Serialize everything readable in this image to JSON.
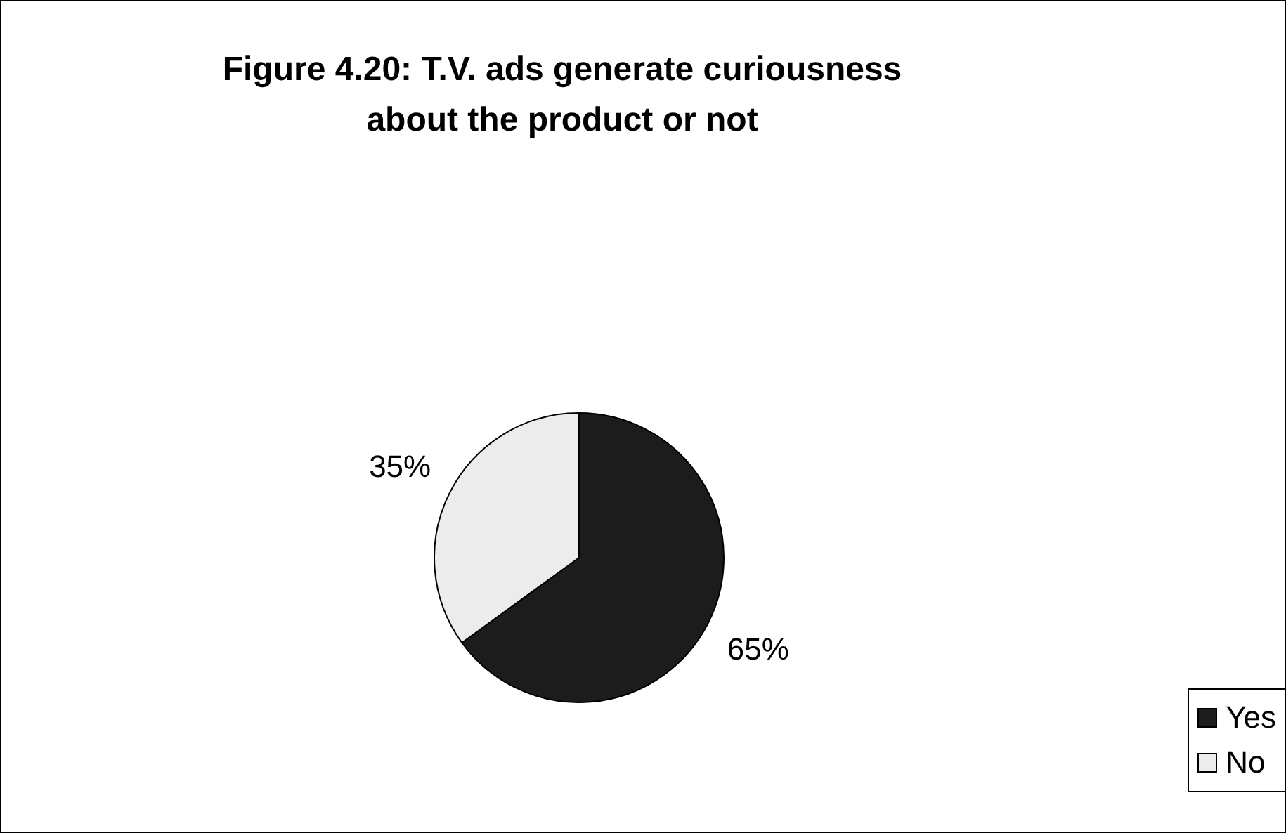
{
  "chart_data": {
    "type": "pie",
    "title": "Figure 4.20: T.V. ads generate curiousness about the product or not",
    "categories": [
      "Yes",
      "No"
    ],
    "values": [
      65,
      35
    ],
    "value_labels": [
      "65%",
      "35%"
    ],
    "colors": [
      "#1c1c1c",
      "#ececec"
    ],
    "legend": "right"
  }
}
